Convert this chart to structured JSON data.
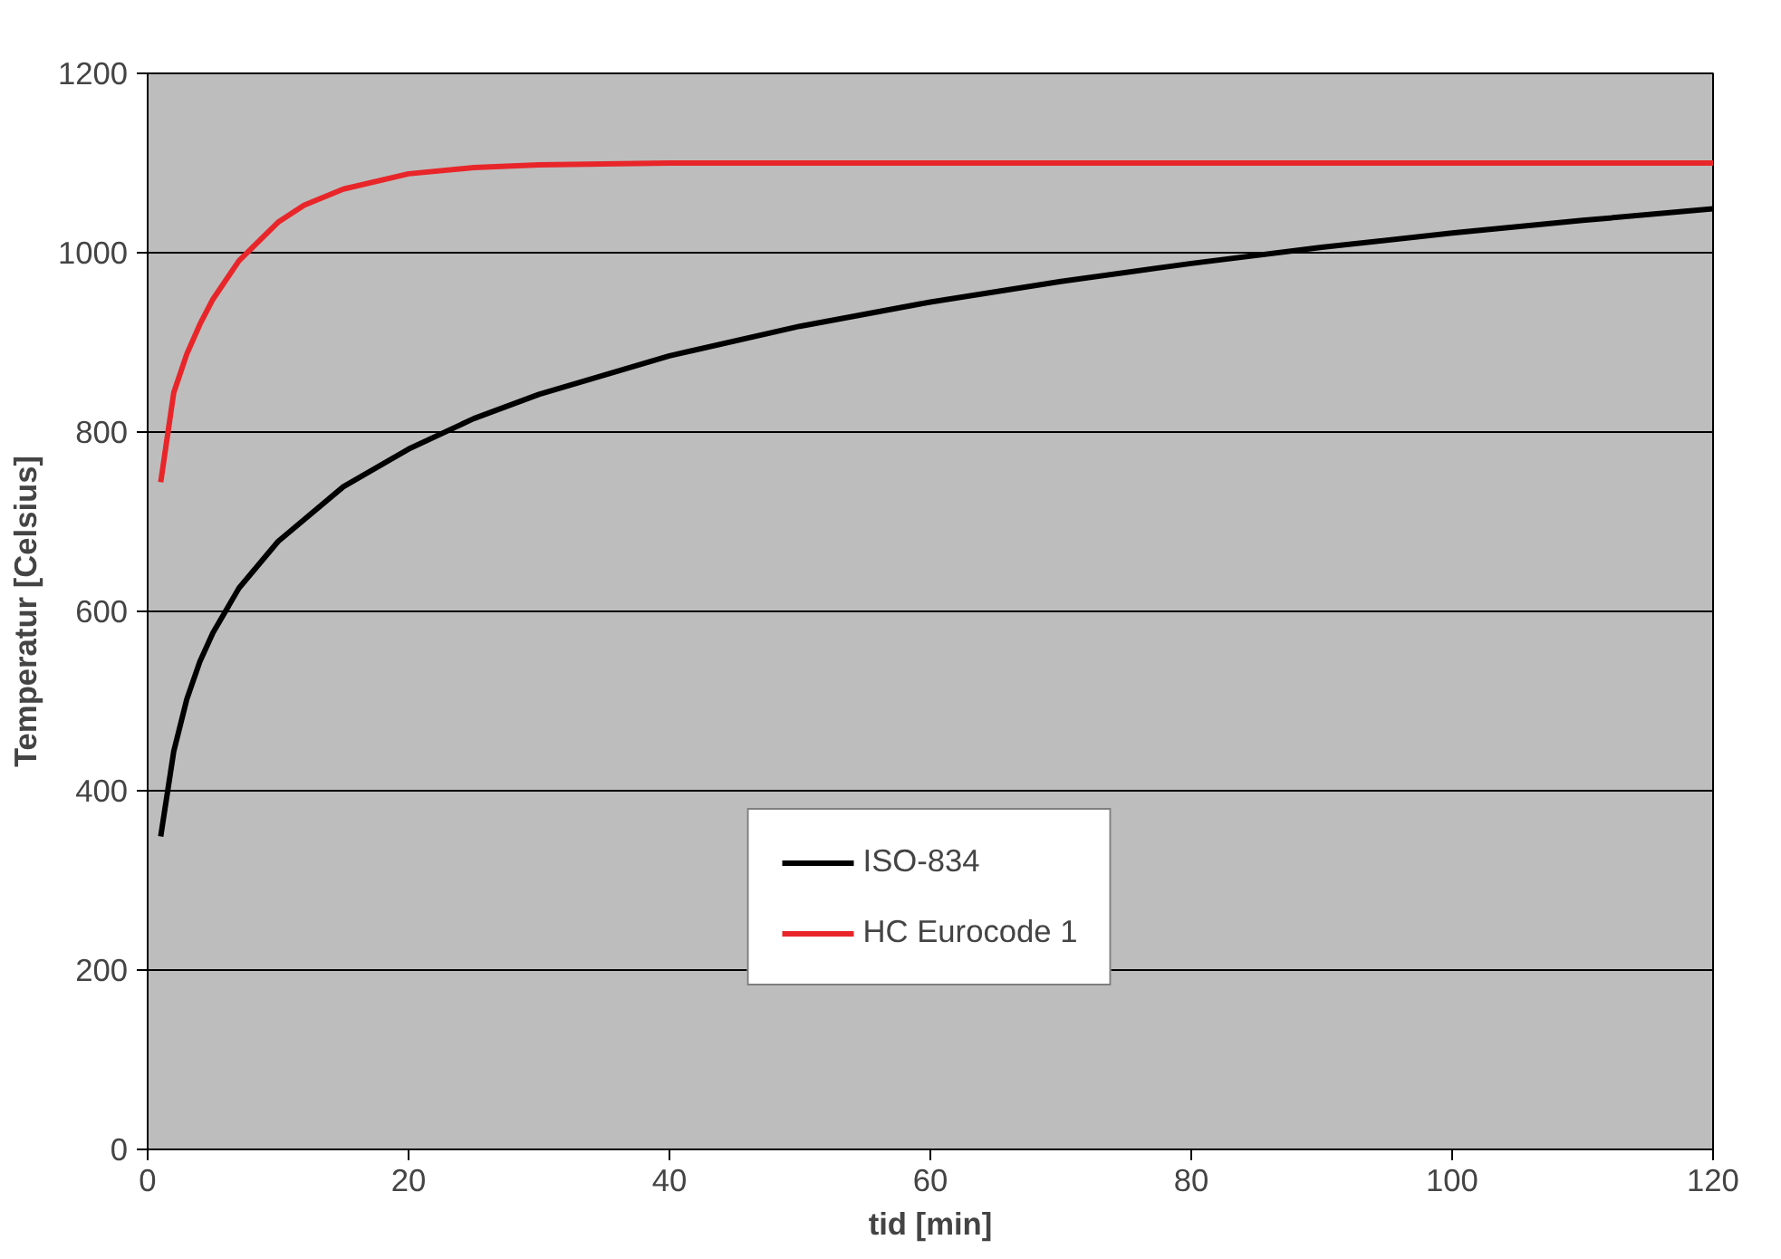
{
  "chart_data": {
    "type": "line",
    "xlabel": "tid [min]",
    "ylabel": "Temperatur [Celsius]",
    "xlim": [
      0,
      120
    ],
    "ylim": [
      0,
      1200
    ],
    "xticks": [
      0,
      20,
      40,
      60,
      80,
      100,
      120
    ],
    "yticks": [
      0,
      200,
      400,
      600,
      800,
      1000,
      1200
    ],
    "grid": "y",
    "legend": "bottom",
    "marker": "none",
    "line_style": "solid",
    "series": [
      {
        "name": "ISO-834",
        "color": "#000000",
        "x": [
          1,
          2,
          3,
          4,
          5,
          7,
          10,
          15,
          20,
          25,
          30,
          40,
          50,
          60,
          70,
          80,
          90,
          100,
          110,
          120
        ],
        "values": [
          349,
          444,
          502,
          544,
          576,
          626,
          678,
          739,
          781,
          815,
          842,
          885,
          918,
          945,
          968,
          988,
          1006,
          1022,
          1036,
          1049
        ]
      },
      {
        "name": "HC Eurocode 1",
        "color": "#e8262a",
        "x": [
          1,
          2,
          3,
          4,
          5,
          7,
          10,
          12,
          15,
          20,
          25,
          30,
          40,
          60,
          80,
          100,
          120
        ],
        "values": [
          744,
          844,
          887,
          920,
          948,
          991,
          1034,
          1053,
          1071,
          1088,
          1095,
          1098,
          1100,
          1100,
          1100,
          1100,
          1100
        ]
      }
    ]
  }
}
